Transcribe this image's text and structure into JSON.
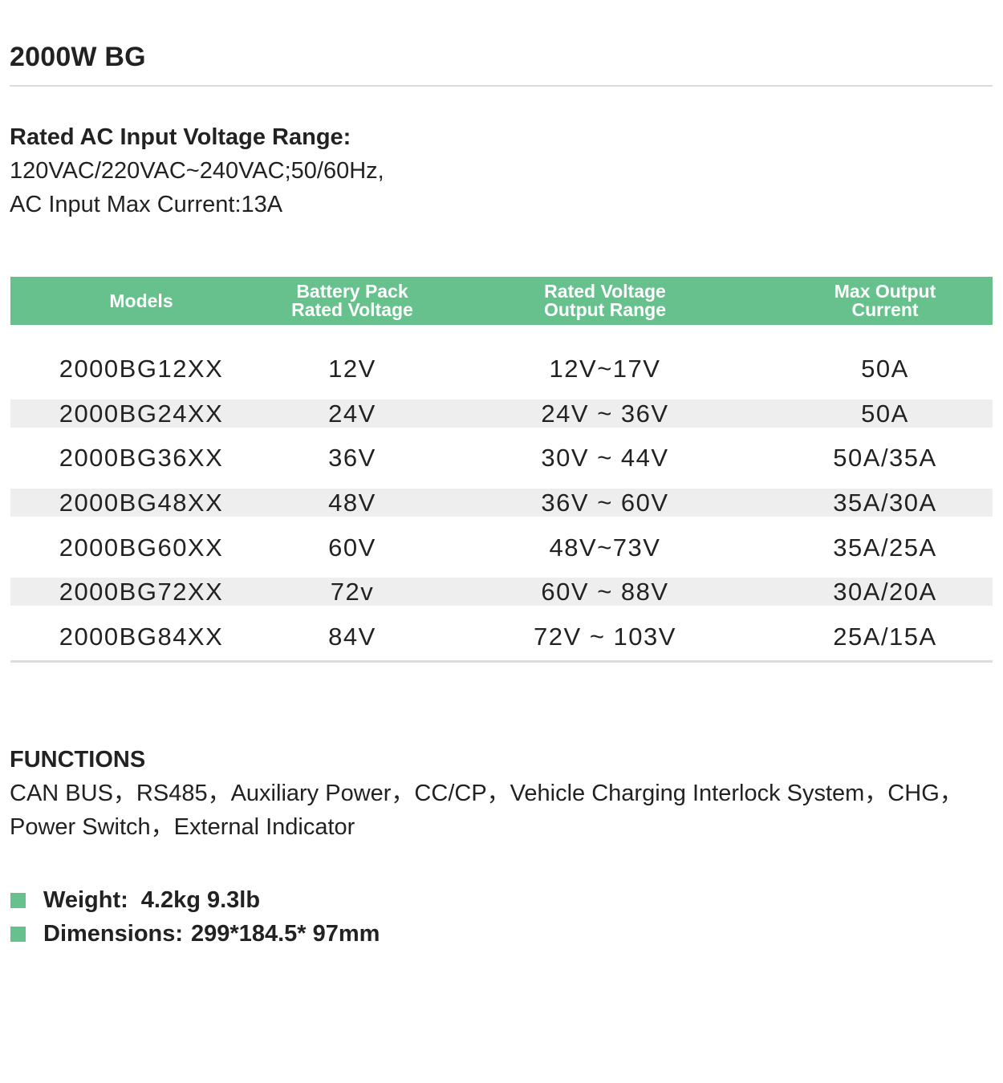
{
  "title": "2000W BG",
  "input": {
    "heading": "Rated AC Input Voltage Range:",
    "line1": "120VAC/220VAC~240VAC;50/60Hz,",
    "line2": "AC Input Max Current:13A"
  },
  "table": {
    "headers": [
      [
        "Models"
      ],
      [
        "Battery Pack",
        "Rated Voltage"
      ],
      [
        "Rated Voltage",
        "Output Range"
      ],
      [
        "Max Output",
        "Current"
      ]
    ],
    "rows": [
      [
        "2000BG12XX",
        "12V",
        "12V~17V",
        "50A"
      ],
      [
        "2000BG24XX",
        "24V",
        "24V ~ 36V",
        "50A"
      ],
      [
        "2000BG36XX",
        "36V",
        "30V ~ 44V",
        "50A/35A"
      ],
      [
        "2000BG48XX",
        "48V",
        "36V ~ 60V",
        "35A/30A"
      ],
      [
        "2000BG60XX",
        "60V",
        "48V~73V",
        "35A/25A"
      ],
      [
        "2000BG72XX",
        "72v",
        "60V ~ 88V",
        "30A/20A"
      ],
      [
        "2000BG84XX",
        "84V",
        "72V ~ 103V",
        "25A/15A"
      ]
    ]
  },
  "functions": {
    "heading": "FUNCTIONS",
    "line1": "CAN BUS，RS485，Auxiliary Power，CC/CP，Vehicle Charging Interlock System，CHG，",
    "line2": "Power Switch，External Indicator"
  },
  "specs": {
    "weight_label": "Weight:",
    "weight_value": "4.2kg 9.3lb",
    "dimensions_label": "Dimensions:",
    "dimensions_value": "299*184.5* 97mm"
  },
  "colors": {
    "accent": "#66c18c",
    "alt_row": "#eeeeee"
  }
}
